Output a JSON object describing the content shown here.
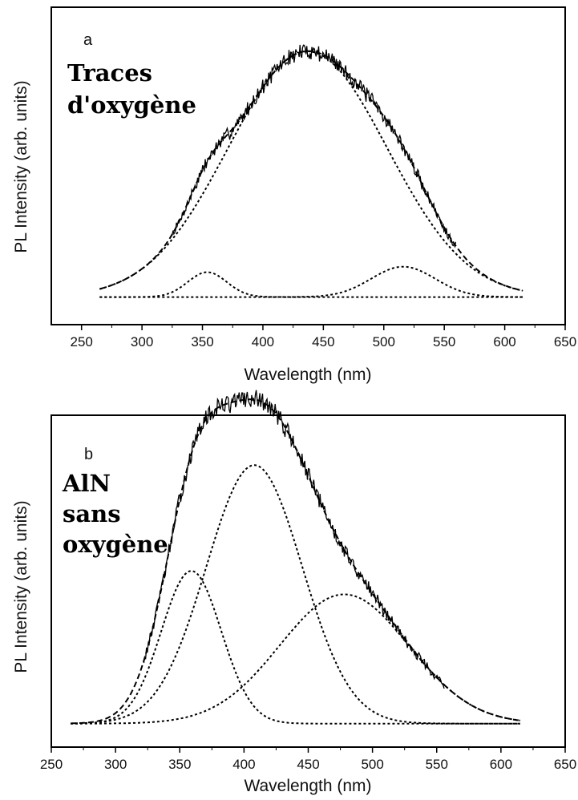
{
  "chart_data": [
    {
      "type": "line",
      "panel_label": "a",
      "annotation": [
        "Traces",
        "d'oxygène"
      ],
      "xlabel": "Wavelength (nm)",
      "ylabel": "PL Intensity (arb. units)",
      "xlim": [
        225,
        650
      ],
      "ylim": [
        -0.1,
        1.05
      ],
      "xticks": [
        250,
        300,
        350,
        400,
        450,
        500,
        550,
        600,
        650
      ],
      "yticks_shown": false,
      "grid": false,
      "legend": "none",
      "x_range": [
        265,
        615
      ],
      "series": [
        {
          "style": "solid-noisy",
          "role": "measured",
          "edge_low": 325,
          "edge_high": 560,
          "peak_x": 435,
          "peak_y": 0.94
        },
        {
          "style": "dashed",
          "role": "fit-envelope",
          "peak_x": 438,
          "peak_y": 0.93
        },
        {
          "style": "dotted",
          "role": "gaussian-component",
          "center": 437,
          "fwhm": 155,
          "amplitude": 0.89
        },
        {
          "style": "dotted",
          "role": "gaussian-component",
          "center": 354,
          "fwhm": 38,
          "amplitude": 0.09
        },
        {
          "style": "dotted",
          "role": "gaussian-component",
          "center": 516,
          "fwhm": 62,
          "amplitude": 0.11
        }
      ]
    },
    {
      "type": "line",
      "panel_label": "b",
      "annotation": [
        "AlN",
        "sans",
        "oxygène"
      ],
      "xlabel": "Wavelength (nm)",
      "ylabel": "PL Intensity (arb. units)",
      "xlim": [
        250,
        650
      ],
      "ylim": [
        -0.08,
        1.05
      ],
      "xticks": [
        250,
        300,
        350,
        400,
        450,
        500,
        550,
        600,
        650
      ],
      "yticks_shown": false,
      "grid": false,
      "legend": "none",
      "x_range": [
        265,
        615
      ],
      "series": [
        {
          "style": "solid-noisy",
          "role": "measured",
          "edge_low": 322,
          "edge_high": 556,
          "peak_x": 400,
          "peak_y": 1.0
        },
        {
          "style": "dashed",
          "role": "fit-envelope",
          "peak_x": 400,
          "peak_y": 0.97
        },
        {
          "style": "dotted",
          "role": "gaussian-component",
          "center": 359,
          "fwhm": 55,
          "amplitude": 0.52
        },
        {
          "style": "dotted",
          "role": "gaussian-component",
          "center": 408,
          "fwhm": 88,
          "amplitude": 0.88
        },
        {
          "style": "dotted",
          "role": "gaussian-component",
          "center": 478,
          "fwhm": 118,
          "amplitude": 0.44
        }
      ]
    }
  ]
}
